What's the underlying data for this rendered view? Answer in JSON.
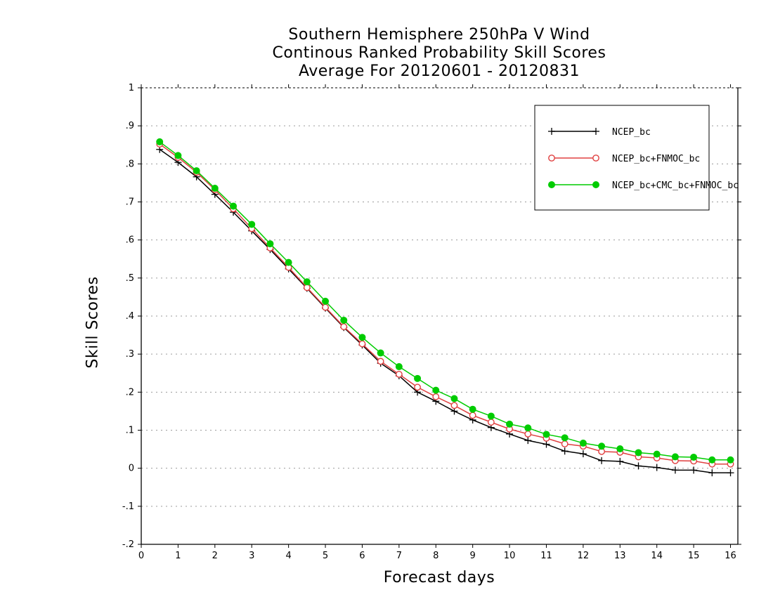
{
  "chart_data": {
    "type": "line",
    "title": [
      "Southern Hemisphere 250hPa V Wind",
      "Continous Ranked Probability Skill Scores",
      "Average For 20120601 - 20120831"
    ],
    "xlabel": "Forecast days",
    "ylabel": "Skill Scores",
    "xlim": [
      0,
      16.2
    ],
    "ylim": [
      -0.2,
      1
    ],
    "xticks": [
      0,
      1,
      2,
      3,
      4,
      5,
      6,
      7,
      8,
      9,
      10,
      11,
      12,
      13,
      14,
      15,
      16
    ],
    "yticks": [
      -0.2,
      -0.1,
      0,
      0.1,
      0.2,
      0.3,
      0.4,
      0.5,
      0.6,
      0.7,
      0.8,
      0.9,
      1
    ],
    "grid": "horizontal dotted",
    "legend_position": "top-right",
    "x": [
      0.5,
      1,
      1.5,
      2,
      2.5,
      3,
      3.5,
      4,
      4.5,
      5,
      5.5,
      6,
      6.5,
      7,
      7.5,
      8,
      8.5,
      9,
      9.5,
      10,
      10.5,
      11,
      11.5,
      12,
      12.5,
      13,
      13.5,
      14,
      14.5,
      15,
      15.5,
      16
    ],
    "series": [
      {
        "name": "NCEP_bc",
        "color": "#000000",
        "marker": "plus",
        "values": [
          0.838,
          0.804,
          0.766,
          0.72,
          0.673,
          0.624,
          0.575,
          0.524,
          0.473,
          0.421,
          0.37,
          0.324,
          0.276,
          0.243,
          0.2,
          0.176,
          0.15,
          0.127,
          0.107,
          0.09,
          0.073,
          0.063,
          0.045,
          0.038,
          0.02,
          0.018,
          0.006,
          0.002,
          -0.005,
          -0.005,
          -0.012,
          -0.012
        ]
      },
      {
        "name": "NCEP_bc+FNMOC_bc",
        "color": "#e04040",
        "marker": "open-circle",
        "values": [
          0.852,
          0.817,
          0.778,
          0.732,
          0.682,
          0.63,
          0.579,
          0.528,
          0.475,
          0.423,
          0.372,
          0.327,
          0.281,
          0.247,
          0.213,
          0.188,
          0.165,
          0.139,
          0.121,
          0.103,
          0.09,
          0.079,
          0.064,
          0.058,
          0.044,
          0.042,
          0.03,
          0.027,
          0.02,
          0.019,
          0.011,
          0.011
        ]
      },
      {
        "name": "NCEP_bc+CMC_bc+FNMOC_bc",
        "color": "#00cc00",
        "marker": "filled-circle",
        "values": [
          0.858,
          0.822,
          0.782,
          0.736,
          0.689,
          0.641,
          0.59,
          0.541,
          0.49,
          0.439,
          0.389,
          0.344,
          0.303,
          0.267,
          0.236,
          0.205,
          0.183,
          0.155,
          0.137,
          0.116,
          0.106,
          0.089,
          0.08,
          0.066,
          0.058,
          0.051,
          0.041,
          0.037,
          0.03,
          0.029,
          0.022,
          0.022
        ]
      }
    ]
  }
}
